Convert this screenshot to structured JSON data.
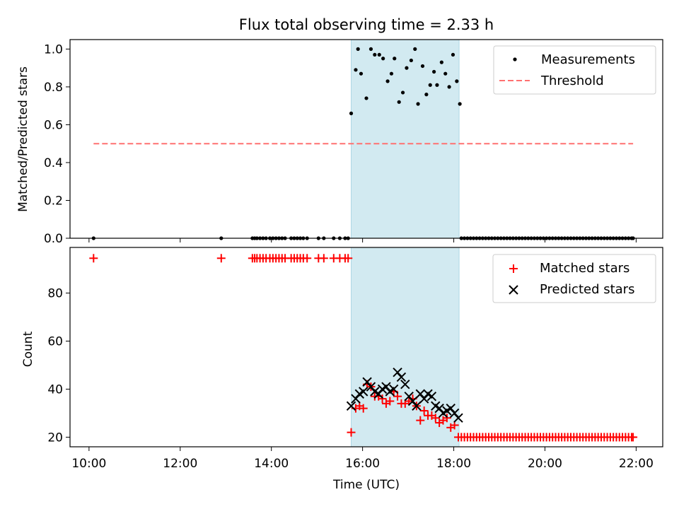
{
  "figure": {
    "title": "Flux total observing time = 2.33 h",
    "xlabel": "Time (UTC)",
    "x_ticks": [
      "10:00",
      "12:00",
      "14:00",
      "16:00",
      "18:00",
      "20:00",
      "22:00"
    ]
  },
  "colors": {
    "measurements": "#000000",
    "threshold": "#ff7070",
    "matched": "#ff0000",
    "predicted": "#000000",
    "highlight": "#add8e6"
  },
  "chart_data": [
    {
      "type": "scatter",
      "ylabel": "Matched/Predicted stars",
      "xlim": [
        "09:35",
        "22:35"
      ],
      "ylim": [
        0,
        1.05
      ],
      "y_ticks": [
        0.0,
        0.2,
        0.4,
        0.6,
        0.8,
        1.0
      ],
      "grid": false,
      "legend_position": "top-right",
      "highlight_span": [
        "15:45",
        "18:07"
      ],
      "series": [
        {
          "name": "Measurements",
          "marker": "dot",
          "points": [
            [
              "10:06",
              0
            ],
            [
              "12:54",
              0
            ],
            [
              "13:35",
              0
            ],
            [
              "13:38",
              0
            ],
            [
              "13:41",
              0
            ],
            [
              "13:45",
              0
            ],
            [
              "13:49",
              0
            ],
            [
              "13:53",
              0
            ],
            [
              "13:58",
              0
            ],
            [
              "14:02",
              0
            ],
            [
              "14:06",
              0
            ],
            [
              "14:10",
              0
            ],
            [
              "14:14",
              0
            ],
            [
              "14:18",
              0
            ],
            [
              "14:26",
              0
            ],
            [
              "14:30",
              0
            ],
            [
              "14:34",
              0
            ],
            [
              "14:38",
              0
            ],
            [
              "14:42",
              0
            ],
            [
              "14:47",
              0
            ],
            [
              "15:02",
              0
            ],
            [
              "15:09",
              0
            ],
            [
              "15:22",
              0
            ],
            [
              "15:30",
              0
            ],
            [
              "15:37",
              0
            ],
            [
              "15:41",
              0
            ],
            [
              "15:45",
              0.66
            ],
            [
              "15:51",
              0.89
            ],
            [
              "15:54",
              1.0
            ],
            [
              "15:58",
              0.87
            ],
            [
              "16:05",
              0.74
            ],
            [
              "16:11",
              1.0
            ],
            [
              "16:16",
              0.97
            ],
            [
              "16:22",
              0.97
            ],
            [
              "16:27",
              0.95
            ],
            [
              "16:33",
              0.83
            ],
            [
              "16:38",
              0.87
            ],
            [
              "16:42",
              0.95
            ],
            [
              "16:48",
              0.72
            ],
            [
              "16:53",
              0.77
            ],
            [
              "16:58",
              0.9
            ],
            [
              "17:04",
              0.94
            ],
            [
              "17:09",
              1.0
            ],
            [
              "17:13",
              0.71
            ],
            [
              "17:19",
              0.91
            ],
            [
              "17:24",
              0.76
            ],
            [
              "17:29",
              0.81
            ],
            [
              "17:34",
              0.88
            ],
            [
              "17:38",
              0.81
            ],
            [
              "17:44",
              0.93
            ],
            [
              "17:49",
              0.87
            ],
            [
              "17:54",
              0.8
            ],
            [
              "17:59",
              0.97
            ],
            [
              "18:04",
              0.83
            ],
            [
              "18:08",
              0.71
            ],
            [
              "18:10",
              0
            ],
            [
              "18:14",
              0
            ],
            [
              "18:18",
              0
            ],
            [
              "18:22",
              0
            ],
            [
              "18:26",
              0
            ],
            [
              "18:30",
              0
            ],
            [
              "18:34",
              0
            ],
            [
              "18:38",
              0
            ],
            [
              "18:42",
              0
            ],
            [
              "18:46",
              0
            ],
            [
              "18:50",
              0
            ],
            [
              "18:54",
              0
            ],
            [
              "18:58",
              0
            ],
            [
              "19:02",
              0
            ],
            [
              "19:06",
              0
            ],
            [
              "19:10",
              0
            ],
            [
              "19:14",
              0
            ],
            [
              "19:18",
              0
            ],
            [
              "19:22",
              0
            ],
            [
              "19:26",
              0
            ],
            [
              "19:30",
              0
            ],
            [
              "19:34",
              0
            ],
            [
              "19:38",
              0
            ],
            [
              "19:42",
              0
            ],
            [
              "19:46",
              0
            ],
            [
              "19:50",
              0
            ],
            [
              "19:54",
              0
            ],
            [
              "19:58",
              0
            ],
            [
              "20:02",
              0
            ],
            [
              "20:06",
              0
            ],
            [
              "20:10",
              0
            ],
            [
              "20:14",
              0
            ],
            [
              "20:18",
              0
            ],
            [
              "20:22",
              0
            ],
            [
              "20:26",
              0
            ],
            [
              "20:30",
              0
            ],
            [
              "20:34",
              0
            ],
            [
              "20:38",
              0
            ],
            [
              "20:42",
              0
            ],
            [
              "20:46",
              0
            ],
            [
              "20:50",
              0
            ],
            [
              "20:54",
              0
            ],
            [
              "20:58",
              0
            ],
            [
              "21:02",
              0
            ],
            [
              "21:06",
              0
            ],
            [
              "21:10",
              0
            ],
            [
              "21:14",
              0
            ],
            [
              "21:18",
              0
            ],
            [
              "21:22",
              0
            ],
            [
              "21:26",
              0
            ],
            [
              "21:30",
              0
            ],
            [
              "21:34",
              0
            ],
            [
              "21:38",
              0
            ],
            [
              "21:42",
              0
            ],
            [
              "21:46",
              0
            ],
            [
              "21:50",
              0
            ],
            [
              "21:54",
              0
            ],
            [
              "21:56",
              0
            ]
          ]
        },
        {
          "name": "Threshold",
          "marker": "dashed-line",
          "points": [
            [
              "10:06",
              0.5
            ],
            [
              "21:56",
              0.5
            ]
          ]
        }
      ]
    },
    {
      "type": "scatter",
      "ylabel": "Count",
      "xlim": [
        "09:35",
        "22:35"
      ],
      "ylim": [
        16,
        99
      ],
      "y_ticks": [
        20,
        40,
        60,
        80
      ],
      "grid": false,
      "legend_position": "top-right",
      "highlight_span": [
        "15:45",
        "18:07"
      ],
      "series": [
        {
          "name": "Matched stars",
          "marker": "plus",
          "points": [
            [
              "10:06",
              94.5
            ],
            [
              "12:54",
              94.5
            ],
            [
              "13:35",
              94.5
            ],
            [
              "13:38",
              94.5
            ],
            [
              "13:41",
              94.5
            ],
            [
              "13:45",
              94.5
            ],
            [
              "13:49",
              94.5
            ],
            [
              "13:53",
              94.5
            ],
            [
              "13:58",
              94.5
            ],
            [
              "14:02",
              94.5
            ],
            [
              "14:06",
              94.5
            ],
            [
              "14:10",
              94.5
            ],
            [
              "14:14",
              94.5
            ],
            [
              "14:18",
              94.5
            ],
            [
              "14:26",
              94.5
            ],
            [
              "14:30",
              94.5
            ],
            [
              "14:34",
              94.5
            ],
            [
              "14:38",
              94.5
            ],
            [
              "14:42",
              94.5
            ],
            [
              "14:47",
              94.5
            ],
            [
              "15:02",
              94.5
            ],
            [
              "15:09",
              94.5
            ],
            [
              "15:22",
              94.5
            ],
            [
              "15:30",
              94.5
            ],
            [
              "15:37",
              94.5
            ],
            [
              "15:41",
              94.5
            ],
            [
              "15:45",
              22
            ],
            [
              "15:51",
              32
            ],
            [
              "15:56",
              33
            ],
            [
              "16:01",
              32
            ],
            [
              "16:06",
              42
            ],
            [
              "16:11",
              41
            ],
            [
              "16:16",
              37
            ],
            [
              "16:21",
              37
            ],
            [
              "16:26",
              36
            ],
            [
              "16:31",
              34
            ],
            [
              "16:36",
              35
            ],
            [
              "16:41",
              39
            ],
            [
              "16:46",
              37
            ],
            [
              "16:51",
              34
            ],
            [
              "16:56",
              34
            ],
            [
              "17:01",
              35
            ],
            [
              "17:06",
              36
            ],
            [
              "17:11",
              33
            ],
            [
              "17:16",
              27
            ],
            [
              "17:21",
              31
            ],
            [
              "17:26",
              29
            ],
            [
              "17:31",
              29
            ],
            [
              "17:36",
              28
            ],
            [
              "17:41",
              26
            ],
            [
              "17:46",
              27
            ],
            [
              "17:51",
              28
            ],
            [
              "17:56",
              24
            ],
            [
              "18:01",
              25
            ],
            [
              "18:06",
              20
            ],
            [
              "18:10",
              20
            ],
            [
              "18:14",
              20
            ],
            [
              "18:18",
              20
            ],
            [
              "18:22",
              20
            ],
            [
              "18:26",
              20
            ],
            [
              "18:30",
              20
            ],
            [
              "18:34",
              20
            ],
            [
              "18:38",
              20
            ],
            [
              "18:42",
              20
            ],
            [
              "18:46",
              20
            ],
            [
              "18:50",
              20
            ],
            [
              "18:54",
              20
            ],
            [
              "18:58",
              20
            ],
            [
              "19:02",
              20
            ],
            [
              "19:06",
              20
            ],
            [
              "19:10",
              20
            ],
            [
              "19:14",
              20
            ],
            [
              "19:18",
              20
            ],
            [
              "19:22",
              20
            ],
            [
              "19:26",
              20
            ],
            [
              "19:30",
              20
            ],
            [
              "19:34",
              20
            ],
            [
              "19:38",
              20
            ],
            [
              "19:42",
              20
            ],
            [
              "19:46",
              20
            ],
            [
              "19:50",
              20
            ],
            [
              "19:54",
              20
            ],
            [
              "19:58",
              20
            ],
            [
              "20:02",
              20
            ],
            [
              "20:06",
              20
            ],
            [
              "20:10",
              20
            ],
            [
              "20:14",
              20
            ],
            [
              "20:18",
              20
            ],
            [
              "20:22",
              20
            ],
            [
              "20:26",
              20
            ],
            [
              "20:30",
              20
            ],
            [
              "20:34",
              20
            ],
            [
              "20:38",
              20
            ],
            [
              "20:42",
              20
            ],
            [
              "20:46",
              20
            ],
            [
              "20:50",
              20
            ],
            [
              "20:54",
              20
            ],
            [
              "20:58",
              20
            ],
            [
              "21:02",
              20
            ],
            [
              "21:06",
              20
            ],
            [
              "21:10",
              20
            ],
            [
              "21:14",
              20
            ],
            [
              "21:18",
              20
            ],
            [
              "21:22",
              20
            ],
            [
              "21:26",
              20
            ],
            [
              "21:30",
              20
            ],
            [
              "21:34",
              20
            ],
            [
              "21:38",
              20
            ],
            [
              "21:42",
              20
            ],
            [
              "21:46",
              20
            ],
            [
              "21:50",
              20
            ],
            [
              "21:54",
              20
            ],
            [
              "21:56",
              20
            ]
          ]
        },
        {
          "name": "Predicted stars",
          "marker": "x",
          "points": [
            [
              "15:45",
              33
            ],
            [
              "15:51",
              36
            ],
            [
              "15:56",
              38
            ],
            [
              "16:01",
              39
            ],
            [
              "16:06",
              43
            ],
            [
              "16:11",
              41
            ],
            [
              "16:16",
              39
            ],
            [
              "16:21",
              38
            ],
            [
              "16:26",
              40
            ],
            [
              "16:31",
              41
            ],
            [
              "16:36",
              39
            ],
            [
              "16:41",
              40
            ],
            [
              "16:46",
              47
            ],
            [
              "16:51",
              45
            ],
            [
              "16:56",
              42
            ],
            [
              "17:01",
              37
            ],
            [
              "17:06",
              35
            ],
            [
              "17:11",
              33
            ],
            [
              "17:16",
              38
            ],
            [
              "17:21",
              36
            ],
            [
              "17:26",
              38
            ],
            [
              "17:31",
              37
            ],
            [
              "17:36",
              33
            ],
            [
              "17:41",
              32
            ],
            [
              "17:46",
              30
            ],
            [
              "17:51",
              31
            ],
            [
              "17:56",
              32
            ],
            [
              "18:01",
              30
            ],
            [
              "18:06",
              28
            ]
          ]
        }
      ]
    }
  ]
}
